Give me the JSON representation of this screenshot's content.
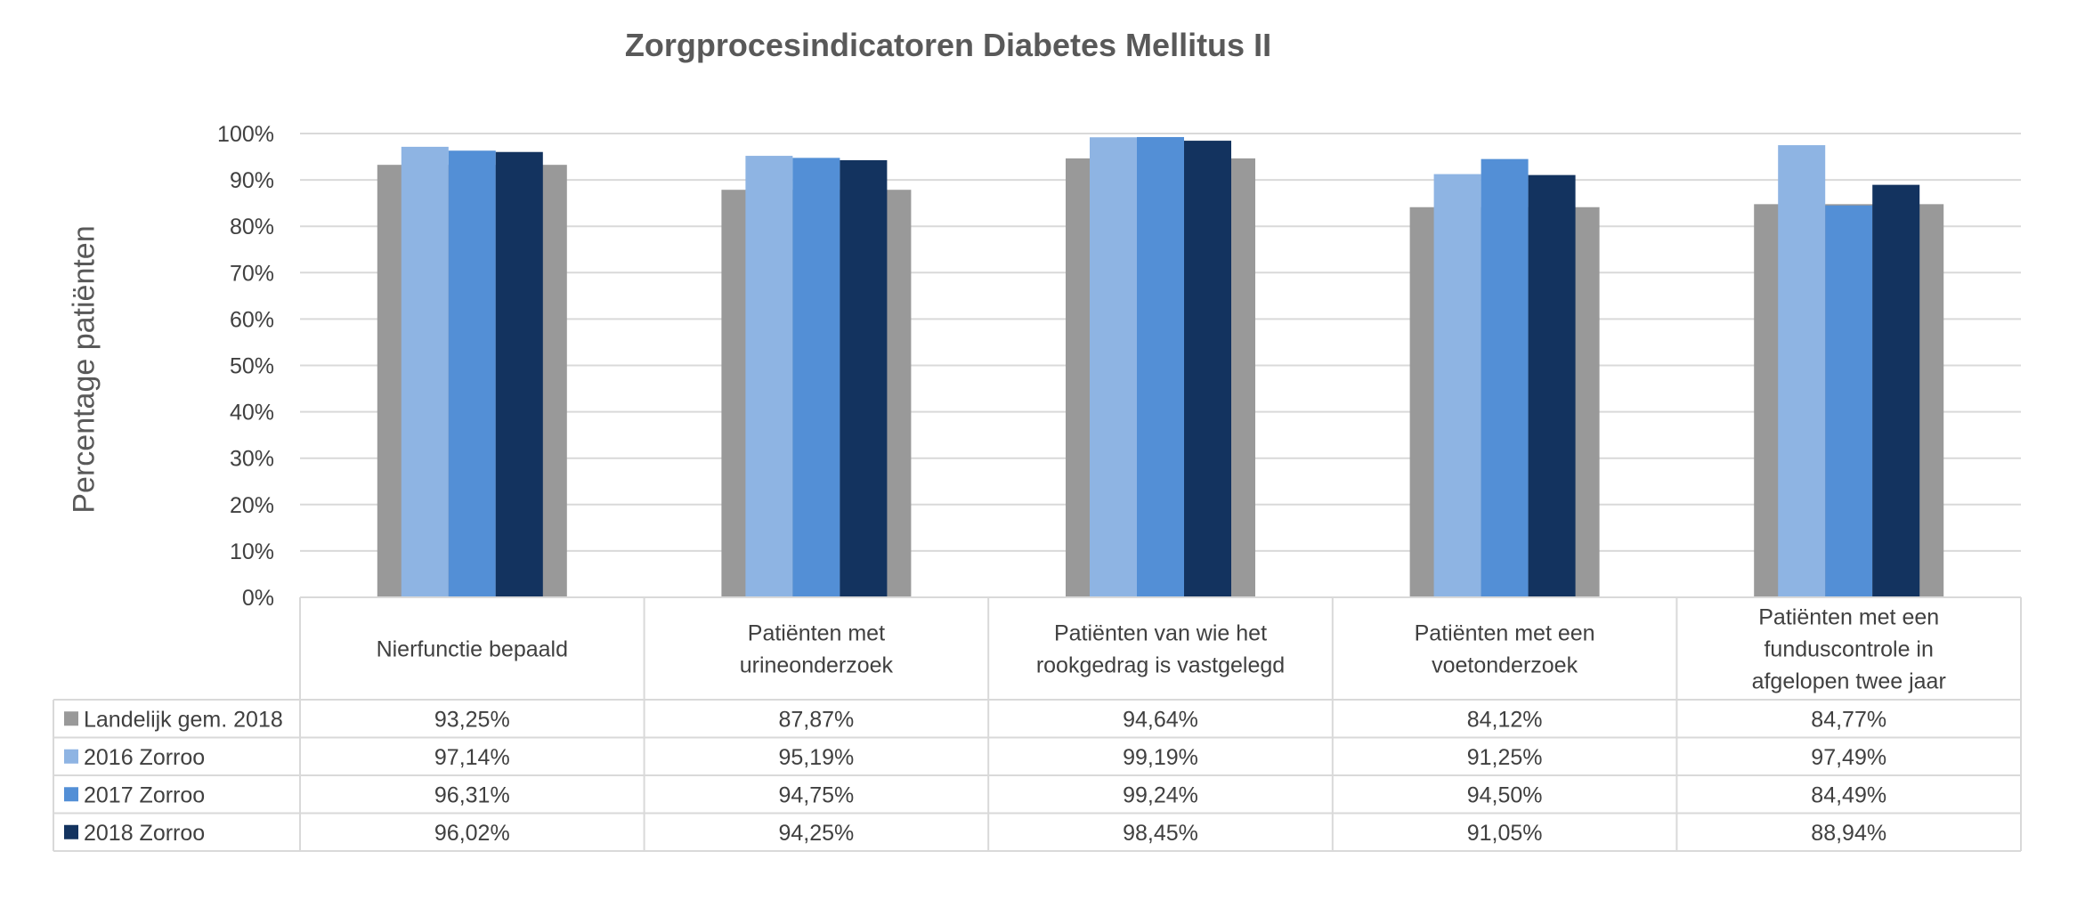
{
  "chart_data": {
    "type": "bar",
    "title": "Zorgprocesindicatoren Diabetes Mellitus II",
    "xlabel": "",
    "ylabel": "Percentage patiënten",
    "ylim": [
      0,
      100
    ],
    "yticks": [
      "0%",
      "10%",
      "20%",
      "30%",
      "40%",
      "50%",
      "60%",
      "70%",
      "80%",
      "90%",
      "100%"
    ],
    "grid": true,
    "legend_placement": "data-table-left",
    "categories": [
      [
        "Nierfunctie bepaald"
      ],
      [
        "Patiënten met",
        "urineonderzoek"
      ],
      [
        "Patiënten van wie het",
        "rookgedrag is vastgelegd"
      ],
      [
        "Patiënten met een",
        "voetonderzoek"
      ],
      [
        "Patiënten met een",
        "funduscontrole in",
        "afgelopen twee jaar"
      ]
    ],
    "series": [
      {
        "name": "Landelijk gem. 2018",
        "color": "#999999",
        "values": [
          93.25,
          87.87,
          94.64,
          84.12,
          84.77
        ],
        "labels": [
          "93,25%",
          "87,87%",
          "94,64%",
          "84,12%",
          "84,77%"
        ]
      },
      {
        "name": "2016 Zorroo",
        "color": "#8eb4e3",
        "values": [
          97.14,
          95.19,
          99.19,
          91.25,
          97.49
        ],
        "labels": [
          "97,14%",
          "95,19%",
          "99,19%",
          "91,25%",
          "97,49%"
        ]
      },
      {
        "name": "2017 Zorroo",
        "color": "#538fd6",
        "values": [
          96.31,
          94.75,
          99.24,
          94.5,
          84.49
        ],
        "labels": [
          "96,31%",
          "94,75%",
          "99,24%",
          "94,50%",
          "84,49%"
        ]
      },
      {
        "name": "2018 Zorroo",
        "color": "#13335f",
        "values": [
          96.02,
          94.25,
          98.45,
          91.05,
          88.94
        ],
        "labels": [
          "96,02%",
          "94,25%",
          "98,45%",
          "91,05%",
          "88,94%"
        ]
      }
    ]
  }
}
